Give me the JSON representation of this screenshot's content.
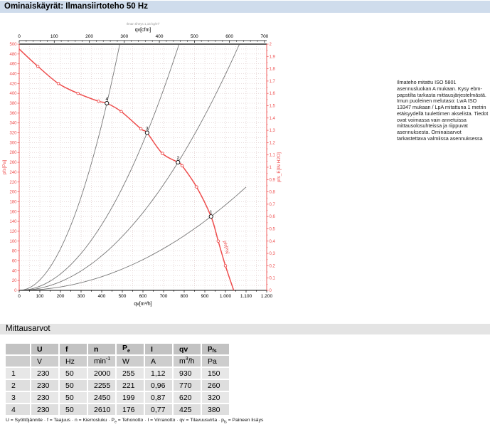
{
  "title_bar": {
    "title": "Ominaiskäyrät: Ilmansiirtoteho 50 Hz"
  },
  "side_note": {
    "text": "Ilmateho mitattu ISO 5801 asennusluokan A mukaan. Kysy ebm-papstilta tarkasta mittausjärjestelmästä. Imun puoleinen melutaso: LwA  ISO 13347 mukaan / LpA mitattuna 1 metrin etäisyydellä tuulettimen akselista. Tiedot ovat voimassa vain annetuissa mittausolosuhteissa ja riippuvat asennuksesta. Ominaisarvot tarkastettava valmiissa asennuksessa"
  },
  "chart_data": {
    "type": "line",
    "title": "",
    "fine_print": "Ilman tiheys 1,15 kg/m³",
    "colors": {
      "curve": "#ee4d4d",
      "system": "#787878",
      "grid": "#dcc6c6",
      "axis_black": "#000000"
    },
    "axes": {
      "bottom": {
        "label": "qv[m³/h]",
        "min": 0,
        "max": 1200,
        "step": 100,
        "minor": 50,
        "format": "thousands-dot"
      },
      "top": {
        "label": "qv[cfm]",
        "min": 0,
        "max": 700,
        "step": 100,
        "minor": 20
      },
      "left": {
        "label": "pfs[Pa]",
        "min": 0,
        "max": 500,
        "step": 20
      },
      "right": {
        "label": "pfs_E[IN H2O]",
        "min": 0,
        "max": 2,
        "step": 0.1,
        "format": "comma-decimal"
      }
    },
    "grid": {
      "x_every": 50,
      "y_every": 10
    },
    "series": [
      {
        "name": "fan-curve",
        "curve_label": "pfs[Pa]",
        "points": [
          [
            0,
            490
          ],
          [
            90,
            455
          ],
          [
            190,
            420
          ],
          [
            285,
            400
          ],
          [
            385,
            384
          ],
          [
            425,
            380
          ],
          [
            495,
            363
          ],
          [
            590,
            328
          ],
          [
            620,
            320
          ],
          [
            694,
            278
          ],
          [
            770,
            260
          ],
          [
            790,
            253
          ],
          [
            860,
            210
          ],
          [
            930,
            150
          ],
          [
            965,
            100
          ],
          [
            1000,
            50
          ],
          [
            1040,
            0
          ]
        ],
        "marker_points": [
          [
            90,
            455
          ],
          [
            190,
            420
          ],
          [
            285,
            400
          ],
          [
            385,
            384
          ],
          [
            495,
            363
          ],
          [
            590,
            328
          ],
          [
            694,
            278
          ],
          [
            790,
            253
          ],
          [
            860,
            210
          ],
          [
            965,
            100
          ],
          [
            1000,
            50
          ]
        ]
      }
    ],
    "operating_points": [
      {
        "label": "1",
        "qv": 930,
        "pfs": 150
      },
      {
        "label": "2",
        "qv": 770,
        "pfs": 260
      },
      {
        "label": "3",
        "qv": 620,
        "pfs": 320
      },
      {
        "label": "4",
        "qv": 425,
        "pfs": 380
      }
    ],
    "system_curves": {
      "note": "parabolas through operating points",
      "x_cap": 1100
    }
  },
  "measurements": {
    "section_title": "Mittausarvot",
    "columns": [
      {
        "symbol": [
          {
            "t": "U"
          }
        ],
        "unit": [
          {
            "t": "V"
          }
        ]
      },
      {
        "symbol": [
          {
            "t": "f"
          }
        ],
        "unit": [
          {
            "t": "Hz"
          }
        ]
      },
      {
        "symbol": [
          {
            "t": "n"
          }
        ],
        "unit": [
          {
            "t": "min"
          },
          {
            "sup": "-1"
          }
        ]
      },
      {
        "symbol": [
          {
            "t": "P"
          },
          {
            "sub": "e"
          }
        ],
        "unit": [
          {
            "t": "W"
          }
        ]
      },
      {
        "symbol": [
          {
            "t": "I"
          }
        ],
        "unit": [
          {
            "t": "A"
          }
        ]
      },
      {
        "symbol": [
          {
            "t": "qv"
          }
        ],
        "unit": [
          {
            "t": "m"
          },
          {
            "sup": "3"
          },
          {
            "t": "/h"
          }
        ]
      },
      {
        "symbol": [
          {
            "t": "p"
          },
          {
            "sub": "fs"
          }
        ],
        "unit": [
          {
            "t": "Pa"
          }
        ]
      }
    ],
    "rows": [
      {
        "index": "1",
        "values": [
          "230",
          "50",
          "2000",
          "255",
          "1,12",
          "930",
          "150"
        ]
      },
      {
        "index": "2",
        "values": [
          "230",
          "50",
          "2255",
          "221",
          "0,96",
          "770",
          "260"
        ]
      },
      {
        "index": "3",
        "values": [
          "230",
          "50",
          "2450",
          "199",
          "0,87",
          "620",
          "320"
        ]
      },
      {
        "index": "4",
        "values": [
          "230",
          "50",
          "2610",
          "176",
          "0,77",
          "425",
          "380"
        ]
      }
    ],
    "legend": [
      {
        "t": "U = Syöttöjännite · f = Taajuus · n = Kierrosluku · P"
      },
      {
        "sub": "e"
      },
      {
        "t": " = Tehonotto · I = Virranotto · qv = Tilavuusvirta · p"
      },
      {
        "sub": "fs"
      },
      {
        "t": " = Paineen lisäys"
      }
    ]
  }
}
